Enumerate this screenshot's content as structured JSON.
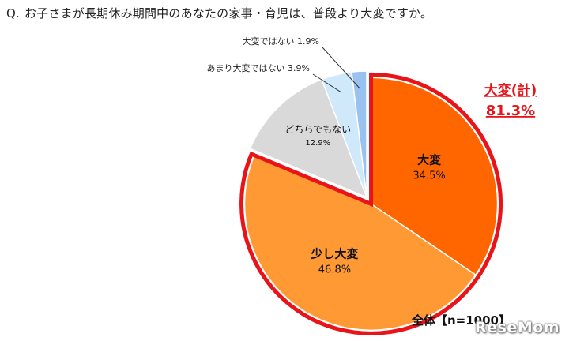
{
  "question": {
    "prefix": "Q.",
    "text": "お子さまが長期休み期間中のあなたの家事・育児は、普段より大変ですか。"
  },
  "chart_data": {
    "type": "pie",
    "title": "",
    "slices": [
      {
        "label": "大変",
        "value": 34.5,
        "value_text": "34.5%",
        "color": "#ff6600",
        "label_position": "inside",
        "bold": true
      },
      {
        "label": "少し大変",
        "value": 46.8,
        "value_text": "46.8%",
        "color": "#ff9933",
        "label_position": "inside",
        "bold": true
      },
      {
        "label": "どちらでもない",
        "value": 12.9,
        "value_text": "12.9%",
        "color": "#d9d9d9",
        "label_position": "inside",
        "bold": false
      },
      {
        "label": "あまり大変ではない",
        "value": 3.9,
        "value_text": "3.9%",
        "color": "#cfe9fb",
        "label_position": "outside",
        "bold": false
      },
      {
        "label": "大変ではない",
        "value": 1.9,
        "value_text": "1.9%",
        "color": "#99c2f0",
        "label_position": "outside",
        "bold": false
      }
    ],
    "highlight": {
      "label": "大変(計)",
      "value_text": "81.3%",
      "color": "#e8141a",
      "includes": [
        "大変",
        "少し大変"
      ]
    },
    "total_label": "全体【n=1000】",
    "legend": "none"
  },
  "watermark": "ReseMom"
}
